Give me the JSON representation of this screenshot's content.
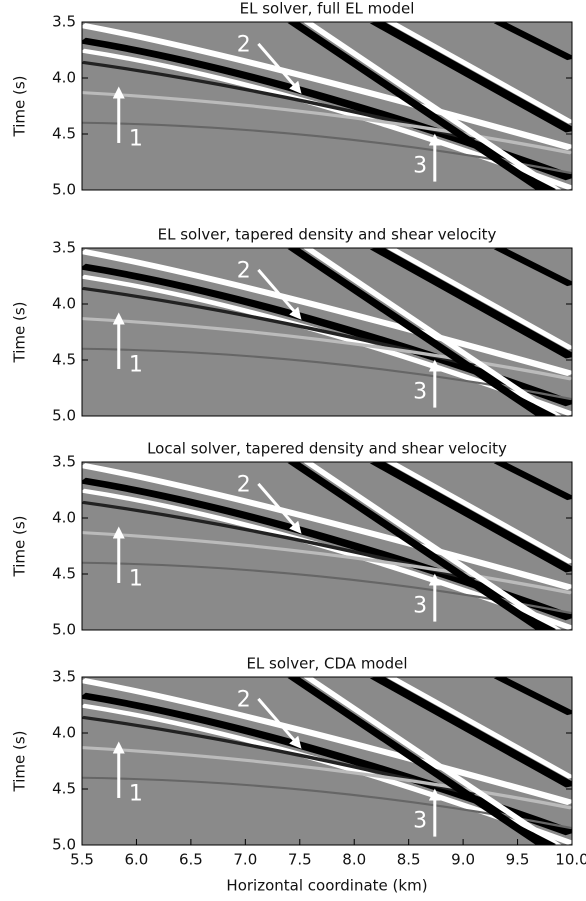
{
  "chart_data": [
    {
      "type": "image",
      "title": "EL solver, full EL model",
      "ylabel": "Time (s)",
      "xlim": [
        5.5,
        10
      ],
      "ylim": [
        5,
        3.5
      ],
      "yticks": [
        3.5,
        {
          "value": 4,
          "label": "4.0"
        },
        4.5,
        {
          "value": 5,
          "label": "5.0"
        }
      ],
      "annotations": [
        "1",
        "2",
        "3"
      ]
    },
    {
      "type": "image",
      "title": "EL solver, tapered density and shear velocity",
      "ylabel": "Time (s)",
      "xlim": [
        5.5,
        10
      ],
      "ylim": [
        5,
        3.5
      ],
      "yticks": [
        3.5,
        {
          "value": 4,
          "label": "4.0"
        },
        4.5,
        {
          "value": 5,
          "label": "5.0"
        }
      ],
      "annotations": [
        "1",
        "2",
        "3"
      ]
    },
    {
      "type": "image",
      "title": "Local solver, tapered density and shear velocity",
      "ylabel": "Time (s)",
      "xlim": [
        5.5,
        10
      ],
      "ylim": [
        5,
        3.5
      ],
      "yticks": [
        3.5,
        {
          "value": 4,
          "label": "4.0"
        },
        4.5,
        {
          "value": 5,
          "label": "5.0"
        }
      ],
      "annotations": [
        "1",
        "2",
        "3"
      ]
    },
    {
      "type": "image",
      "title": "EL solver, CDA model",
      "ylabel": "Time (s)",
      "xlabel": "Horizontal coordinate (km)",
      "xlim": [
        5.5,
        10
      ],
      "ylim": [
        5,
        3.5
      ],
      "yticks": [
        3.5,
        {
          "value": 4,
          "label": "4.0"
        },
        4.5,
        {
          "value": 5,
          "label": "5.0"
        }
      ],
      "xticks": [
        5.5,
        {
          "value": 6,
          "label": "6.0"
        },
        6.5,
        {
          "value": 7,
          "label": "7.0"
        },
        7.5,
        {
          "value": 8,
          "label": "8.0"
        },
        8.5,
        {
          "value": 9,
          "label": "9.0"
        },
        9.5,
        {
          "value": 10,
          "label": "10.0"
        }
      ],
      "annotations": [
        "1",
        "2",
        "3"
      ]
    }
  ]
}
